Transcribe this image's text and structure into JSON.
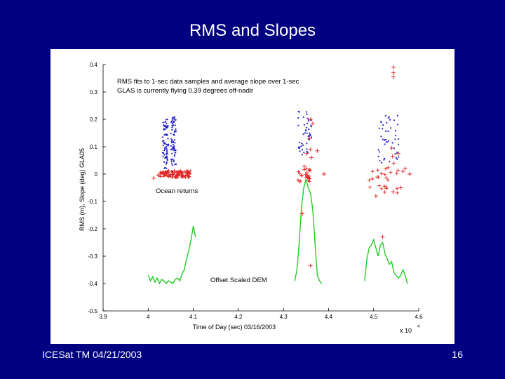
{
  "slide": {
    "title": "RMS and Slopes",
    "footer_left": "ICESat TM 04/21/2003",
    "page_number": "16"
  },
  "chart_data": {
    "type": "scatter",
    "xlabel": "Time of Day (sec) 03/16/2003",
    "ylabel": "RMS (m), Slope (deg) GLA05",
    "x_multiplier": "x 10",
    "x_multiplier_exp": "4",
    "xlim": [
      3.9,
      4.6
    ],
    "ylim": [
      -0.5,
      0.4
    ],
    "x_ticks": [
      "3.9",
      "4",
      "4.1",
      "4.2",
      "4.3",
      "4.4",
      "4.5",
      "4.6"
    ],
    "y_ticks": [
      "0.4",
      "0.3",
      "0.2",
      "0.1",
      "0",
      "-0.1",
      "-0.2",
      "-0.3",
      "-0.4",
      "-0.5"
    ],
    "annotations": {
      "line1": "RMS fits to 1-sec data samples and average slope over 1-sec",
      "line2": "GLAS is currently flying 0.39 degrees off-nadir",
      "ocean": "Ocean returns",
      "dem": "Offset Scaled DEM"
    },
    "colors": {
      "slope": "#2222cc",
      "rms": "#dd2222",
      "dem": "#22cc22",
      "background": "#000080"
    },
    "series": [
      {
        "kind": "slope-points",
        "segments": [
          {
            "x": [
              4.032,
              4.045
            ],
            "y_center": 0.11,
            "y_spread": 0.09,
            "count": 70
          },
          {
            "x": [
              4.05,
              4.062
            ],
            "y_center": 0.12,
            "y_spread": 0.09,
            "count": 70
          },
          {
            "x": [
              4.332,
              4.362
            ],
            "y_center": 0.15,
            "y_spread": 0.08,
            "count": 45
          },
          {
            "x": [
              4.51,
              4.557
            ],
            "y_center": 0.13,
            "y_spread": 0.09,
            "count": 45
          }
        ]
      },
      {
        "kind": "rms-points",
        "segments": [
          {
            "x": [
              4.022,
              4.094
            ],
            "y_center": 0.0,
            "y_spread": 0.012,
            "count": 90
          },
          {
            "x": [
              4.33,
              4.36
            ],
            "y_center": 0.0,
            "y_spread": 0.03,
            "count": 25
          },
          {
            "x": [
              4.49,
              4.56
            ],
            "y_center": -0.02,
            "y_spread": 0.05,
            "count": 25
          }
        ],
        "outliers": [
          {
            "x": 4.012,
            "y": -0.015
          },
          {
            "x": 4.544,
            "y": 0.39
          },
          {
            "x": 4.544,
            "y": 0.37
          },
          {
            "x": 4.544,
            "y": 0.355
          },
          {
            "x": 4.36,
            "y": 0.2
          },
          {
            "x": 4.365,
            "y": 0.185
          },
          {
            "x": 4.358,
            "y": 0.13
          },
          {
            "x": 4.36,
            "y": 0.09
          },
          {
            "x": 4.352,
            "y": 0.075
          },
          {
            "x": 4.362,
            "y": 0.06
          },
          {
            "x": 4.375,
            "y": 0.085
          },
          {
            "x": 4.39,
            "y": 0.0
          },
          {
            "x": 4.342,
            "y": -0.145
          },
          {
            "x": 4.36,
            "y": -0.335
          },
          {
            "x": 4.52,
            "y": -0.23
          },
          {
            "x": 4.54,
            "y": 0.095
          },
          {
            "x": 4.542,
            "y": 0.065
          },
          {
            "x": 4.555,
            "y": 0.075
          },
          {
            "x": 4.545,
            "y": 0.04
          },
          {
            "x": 4.565,
            "y": 0.01
          },
          {
            "x": 4.57,
            "y": 0.02
          },
          {
            "x": 4.58,
            "y": 0.0
          },
          {
            "x": 4.56,
            "y": -0.05
          },
          {
            "x": 4.543,
            "y": -0.065
          },
          {
            "x": 4.505,
            "y": -0.08
          }
        ]
      },
      {
        "kind": "dem-line",
        "segments": [
          {
            "x": [
              4.0,
              4.005,
              4.01,
              4.015,
              4.02,
              4.025,
              4.03,
              4.035,
              4.04,
              4.045,
              4.05,
              4.055,
              4.06,
              4.065,
              4.07,
              4.075,
              4.08,
              4.085,
              4.09,
              4.095,
              4.1,
              4.105
            ],
            "y": [
              -0.37,
              -0.39,
              -0.375,
              -0.395,
              -0.38,
              -0.4,
              -0.385,
              -0.39,
              -0.4,
              -0.39,
              -0.395,
              -0.4,
              -0.385,
              -0.38,
              -0.39,
              -0.365,
              -0.35,
              -0.31,
              -0.28,
              -0.24,
              -0.19,
              -0.23
            ]
          },
          {
            "x": [
              4.325,
              4.33,
              4.335,
              4.34,
              4.345,
              4.35,
              4.355,
              4.36,
              4.365,
              4.37,
              4.375,
              4.38,
              4.385
            ],
            "y": [
              -0.39,
              -0.35,
              -0.25,
              -0.12,
              -0.05,
              -0.02,
              -0.05,
              -0.07,
              -0.13,
              -0.25,
              -0.37,
              -0.39,
              -0.4
            ]
          },
          {
            "x": [
              4.48,
              4.485,
              4.49,
              4.495,
              4.5,
              4.505,
              4.51,
              4.515,
              4.52,
              4.525,
              4.53,
              4.535,
              4.54,
              4.545,
              4.55,
              4.555,
              4.56,
              4.565,
              4.57,
              4.575
            ],
            "y": [
              -0.39,
              -0.31,
              -0.27,
              -0.26,
              -0.24,
              -0.27,
              -0.3,
              -0.26,
              -0.25,
              -0.29,
              -0.31,
              -0.33,
              -0.32,
              -0.36,
              -0.37,
              -0.38,
              -0.37,
              -0.35,
              -0.37,
              -0.4
            ]
          }
        ]
      }
    ]
  }
}
